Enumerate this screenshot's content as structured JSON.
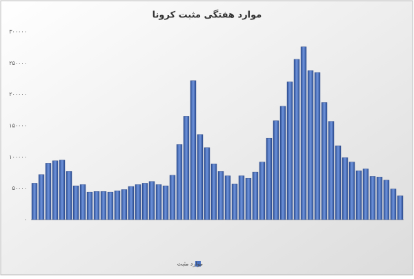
{
  "chart_data": {
    "type": "bar",
    "title": "موارد هفتگی مثبت کرونا",
    "categories": [
      null,
      null,
      null,
      null,
      null,
      null,
      null,
      null,
      null,
      null,
      null,
      null,
      null,
      null,
      null,
      null,
      null,
      null,
      null,
      null,
      null,
      null,
      null,
      null,
      null,
      null,
      null,
      null,
      null,
      null,
      null,
      null,
      null,
      null,
      null,
      null,
      null,
      null,
      null,
      null,
      null,
      null,
      null,
      null,
      null,
      null,
      null,
      null,
      null,
      null,
      null,
      null,
      null,
      null
    ],
    "series": [
      {
        "name": "موارد مثبت",
        "color": "#4a72c0",
        "values": [
          58000,
          72000,
          90000,
          94000,
          95000,
          77000,
          54000,
          56000,
          44000,
          45000,
          45000,
          44000,
          46000,
          48000,
          53000,
          56000,
          58000,
          61000,
          56000,
          54000,
          71000,
          120000,
          165000,
          222000,
          136000,
          115000,
          89000,
          77000,
          70000,
          57000,
          70000,
          66000,
          76000,
          92000,
          130000,
          158000,
          181000,
          220000,
          256000,
          276000,
          238000,
          235000,
          187000,
          157000,
          118000,
          99000,
          92000,
          78000,
          81000,
          69000,
          68000,
          63000,
          49000,
          38000
        ]
      }
    ],
    "ylim": [
      0,
      300000
    ],
    "yticks": [
      {
        "value": 0,
        "label": "۰"
      },
      {
        "value": 50000,
        "label": "۵۰۰۰۰"
      },
      {
        "value": 100000,
        "label": "۱۰۰۰۰۰"
      },
      {
        "value": 150000,
        "label": "۱۵۰۰۰۰"
      },
      {
        "value": 200000,
        "label": "۲۰۰۰۰۰"
      },
      {
        "value": 250000,
        "label": "۲۵۰۰۰۰"
      },
      {
        "value": 300000,
        "label": "۳۰۰۰۰۰"
      }
    ],
    "grid": false,
    "legend": "bottom"
  }
}
